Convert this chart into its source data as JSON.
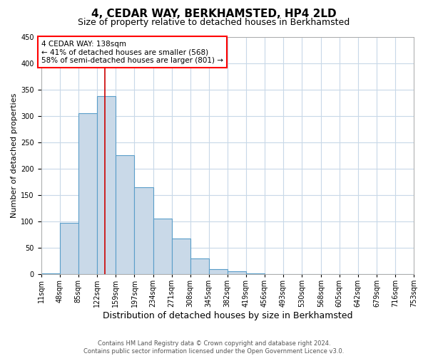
{
  "title": "4, CEDAR WAY, BERKHAMSTED, HP4 2LD",
  "subtitle": "Size of property relative to detached houses in Berkhamsted",
  "xlabel": "Distribution of detached houses by size in Berkhamsted",
  "ylabel": "Number of detached properties",
  "footer_line1": "Contains HM Land Registry data © Crown copyright and database right 2024.",
  "footer_line2": "Contains public sector information licensed under the Open Government Licence v3.0.",
  "annotation_line1": "4 CEDAR WAY: 138sqm",
  "annotation_line2": "← 41% of detached houses are smaller (568)",
  "annotation_line3": "58% of semi-detached houses are larger (801) →",
  "bar_edges": [
    11,
    48,
    85,
    122,
    159,
    197,
    234,
    271,
    308,
    345,
    382,
    419,
    456,
    493,
    530,
    568,
    605,
    642,
    679,
    716,
    753
  ],
  "bar_heights": [
    2,
    97,
    305,
    338,
    226,
    165,
    105,
    67,
    30,
    10,
    5,
    2,
    0,
    0,
    0,
    0,
    0,
    0,
    0,
    0
  ],
  "bar_color": "#c9d9e8",
  "bar_edge_color": "#5a9ec9",
  "property_line_x": 138,
  "property_line_color": "#cc0000",
  "tick_labels": [
    "11sqm",
    "48sqm",
    "85sqm",
    "122sqm",
    "159sqm",
    "197sqm",
    "234sqm",
    "271sqm",
    "308sqm",
    "345sqm",
    "382sqm",
    "419sqm",
    "456sqm",
    "493sqm",
    "530sqm",
    "568sqm",
    "605sqm",
    "642sqm",
    "679sqm",
    "716sqm",
    "753sqm"
  ],
  "ylim": [
    0,
    450
  ],
  "yticks": [
    0,
    50,
    100,
    150,
    200,
    250,
    300,
    350,
    400,
    450
  ],
  "background_color": "#ffffff",
  "grid_color": "#c8d8e8",
  "title_fontsize": 11,
  "subtitle_fontsize": 9,
  "xlabel_fontsize": 9,
  "ylabel_fontsize": 8,
  "tick_fontsize": 7
}
